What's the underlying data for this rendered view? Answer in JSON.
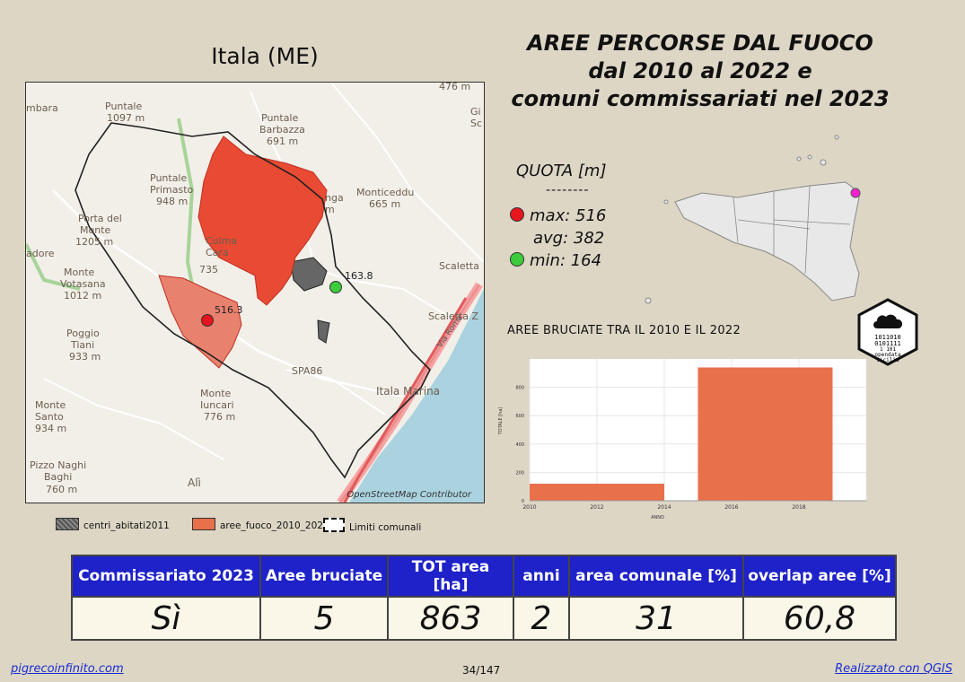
{
  "map_title": "Itala (ME)",
  "title_lines": [
    "AREE PERCORSE DAL FUOCO",
    "dal 2010 al 2022 e",
    "comuni commissariati nel 2023"
  ],
  "map": {
    "attribution": "OpenStreetMap Contributor",
    "max_label": "516.3",
    "min_label": "163.8",
    "place_labels": [
      "Puntale",
      "1097 m",
      "Puntale",
      "Primasto",
      "948 m",
      "Porta del",
      "Monte",
      "1205 m",
      "Monte",
      "Votasana",
      "1012 m",
      "Poggio",
      "Tiani",
      "933 m",
      "Monte",
      "Santo",
      "934 m",
      "Pizzo Naghi",
      "Baghi",
      "760 m",
      "Monte",
      "Iuncari",
      "776 m",
      "Puntale",
      "Barbazza",
      "691 m",
      "Monticeddu",
      "665 m",
      "Culma",
      "Cara",
      "735",
      "Scaletta",
      "Scaletta Z",
      "Itala Marina",
      "Alì",
      "SPA86",
      "Via Roma",
      "476 m",
      "mbara",
      "adore",
      "Gi",
      "Sc",
      "nga",
      "m"
    ]
  },
  "quota": {
    "title": "QUOTA [m]",
    "separator": "--------",
    "max": "max: 516",
    "avg": "avg: 382",
    "min": "min: 164",
    "max_color": "#e8141e",
    "min_color": "#3ccc3c"
  },
  "logo": {
    "text_lines": [
      "1011010",
      "0101111",
      "1  101",
      "opendata",
      "sicilia"
    ]
  },
  "legend": {
    "items": [
      "centri_abitati2011",
      "aree_fuoco_2010_2022",
      "Limiti comunali"
    ]
  },
  "chart_title": "AREE BRUCIATE TRA IL 2010 E IL 2022",
  "chart_data": {
    "type": "bar",
    "title": "AREE BRUCIATE TRA IL 2010 E IL 2022",
    "xlabel": "ANNO",
    "ylabel": "TOTALE [ha]",
    "xlim": [
      2010,
      2020
    ],
    "ylim": [
      0,
      1000
    ],
    "xticks": [
      2010,
      2012,
      2014,
      2016,
      2018
    ],
    "yticks": [
      0,
      200,
      400,
      600,
      800
    ],
    "bars": [
      {
        "x_start": 2010,
        "x_end": 2014,
        "value": 120
      },
      {
        "x_start": 2015,
        "x_end": 2019,
        "value": 940
      }
    ],
    "bar_color": "#e8704a",
    "grid": true
  },
  "stats": {
    "headers": [
      "Commissariato 2023",
      "Aree bruciate",
      "TOT area [ha]",
      "anni",
      "area comunale [%]",
      "overlap aree [%]"
    ],
    "values": [
      "Sì",
      "5",
      "863",
      "2",
      "31",
      "60,8"
    ]
  },
  "footer": {
    "left": "pigrecoinfinito.com",
    "center": "34/147",
    "right": "Realizzato con QGIS"
  }
}
